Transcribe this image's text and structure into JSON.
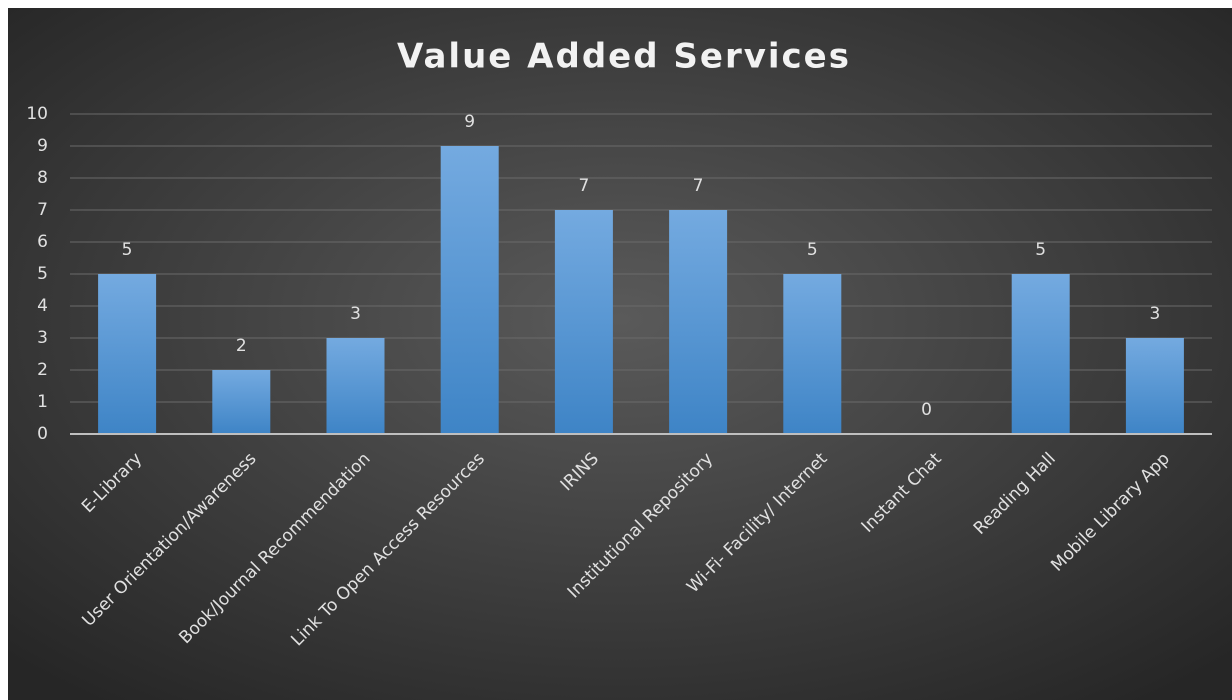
{
  "chart_data": {
    "type": "bar",
    "title": "Value Added Services",
    "categories": [
      "E-Library",
      "User Orientation/Awareness",
      "Book/Journal Recommendation",
      "Link To Open Access Resources",
      "IRINS",
      "Institutional Repository",
      "Wi-Fi- Facility/ Internet",
      "Instant Chat",
      "Reading Hall",
      "Mobile Library App"
    ],
    "values": [
      5,
      2,
      3,
      9,
      7,
      7,
      5,
      0,
      5,
      3
    ],
    "color": "#5b9bd5",
    "ylim": [
      0,
      10
    ],
    "yticks": [
      0,
      1,
      2,
      3,
      4,
      5,
      6,
      7,
      8,
      9,
      10
    ],
    "grid": true
  }
}
